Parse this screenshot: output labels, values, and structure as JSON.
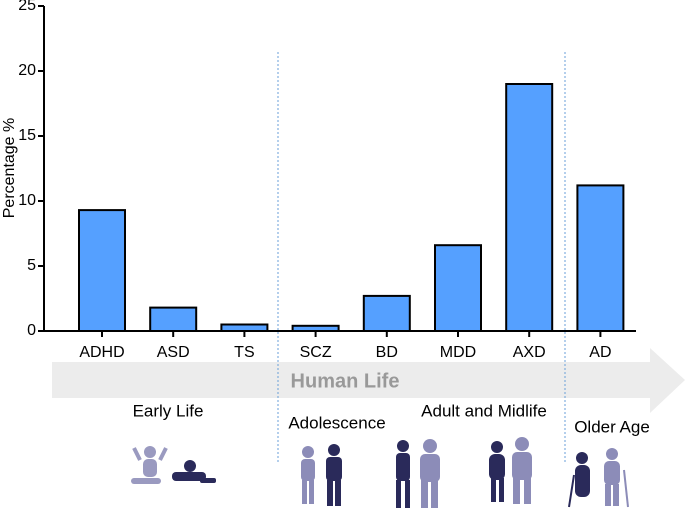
{
  "chart_data": {
    "type": "bar",
    "y_label": "Percentage %",
    "categories": [
      "ADHD",
      "ASD",
      "TS",
      "SCZ",
      "BD",
      "MDD",
      "AXD",
      "AD"
    ],
    "values": [
      9.3,
      1.8,
      0.5,
      0.4,
      2.7,
      6.6,
      19,
      11.2
    ],
    "color": "#55a0ff",
    "ylim": [
      0,
      25
    ],
    "yticks": [
      0,
      5,
      10,
      15,
      20,
      25
    ],
    "arrow_label": "Human Life",
    "stages": [
      "Early Life",
      "Adolescence",
      "Adult and Midlife",
      "Older Age"
    ]
  }
}
